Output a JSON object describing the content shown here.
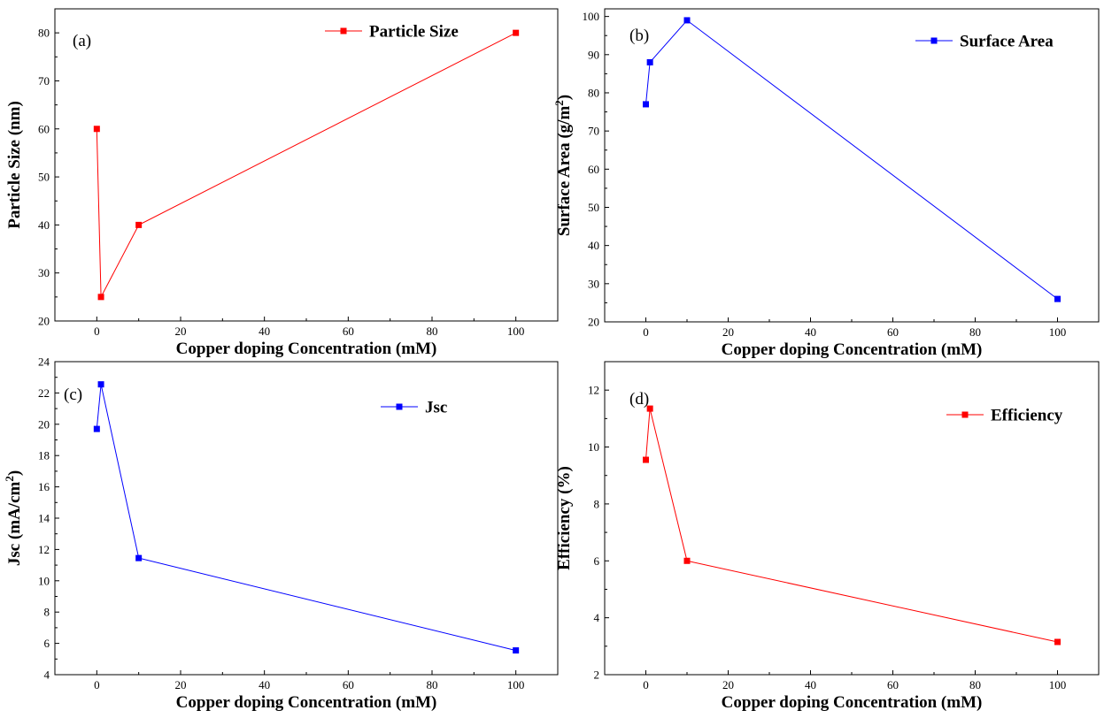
{
  "chart_data": [
    {
      "type": "line",
      "panel_label": "(a)",
      "xlabel": "Copper doping Concentration (mM)",
      "ylabel": "Particle Size (nm)",
      "xlim": [
        -10,
        110
      ],
      "ylim": [
        20,
        85
      ],
      "xticks": [
        0,
        20,
        40,
        60,
        80,
        100
      ],
      "yticks": [
        20,
        30,
        40,
        50,
        60,
        70,
        80
      ],
      "legend_position": "top-right",
      "series": [
        {
          "name": "Particle Size",
          "color": "#ff0000",
          "marker": "square",
          "x": [
            0,
            1,
            10,
            100
          ],
          "y": [
            60,
            25,
            40,
            80
          ]
        }
      ]
    },
    {
      "type": "line",
      "panel_label": "(b)",
      "xlabel": "Copper doping Concentration (mM)",
      "ylabel": "Surface Area (g/m",
      "ylabel_sup": "2",
      "ylabel_end": ")",
      "xlim": [
        -10,
        110
      ],
      "ylim": [
        20,
        102
      ],
      "xticks": [
        0,
        20,
        40,
        60,
        80,
        100
      ],
      "yticks": [
        20,
        30,
        40,
        50,
        60,
        70,
        80,
        90,
        100
      ],
      "legend_position": "top-right",
      "series": [
        {
          "name": "Surface Area",
          "color": "#0000ff",
          "marker": "square",
          "x": [
            0,
            1,
            10,
            100
          ],
          "y": [
            77,
            88,
            99,
            26
          ]
        }
      ]
    },
    {
      "type": "line",
      "panel_label": "(c)",
      "xlabel": "Copper doping Concentration (mM)",
      "ylabel": "Jsc (mA/cm",
      "ylabel_sup": "2",
      "ylabel_end": ")",
      "xlim": [
        -10,
        110
      ],
      "ylim": [
        4,
        24
      ],
      "xticks": [
        0,
        20,
        40,
        60,
        80,
        100
      ],
      "yticks": [
        4,
        6,
        8,
        10,
        12,
        14,
        16,
        18,
        20,
        22,
        24
      ],
      "legend_position": "top-right",
      "series": [
        {
          "name": "Jsc",
          "color": "#0000ff",
          "marker": "square",
          "x": [
            0,
            1,
            10,
            100
          ],
          "y": [
            19.7,
            22.55,
            11.45,
            5.55
          ]
        }
      ]
    },
    {
      "type": "line",
      "panel_label": "(d)",
      "xlabel": "Copper doping Concentration (mM)",
      "ylabel": "Efficiency (%)",
      "xlim": [
        -10,
        110
      ],
      "ylim": [
        2,
        13
      ],
      "xticks": [
        0,
        20,
        40,
        60,
        80,
        100
      ],
      "yticks": [
        2,
        4,
        6,
        8,
        10,
        12
      ],
      "legend_position": "top-right",
      "series": [
        {
          "name": "Efficiency",
          "color": "#ff0000",
          "marker": "square",
          "x": [
            0,
            1,
            10,
            100
          ],
          "y": [
            9.55,
            11.35,
            6.0,
            3.15
          ]
        }
      ]
    }
  ]
}
